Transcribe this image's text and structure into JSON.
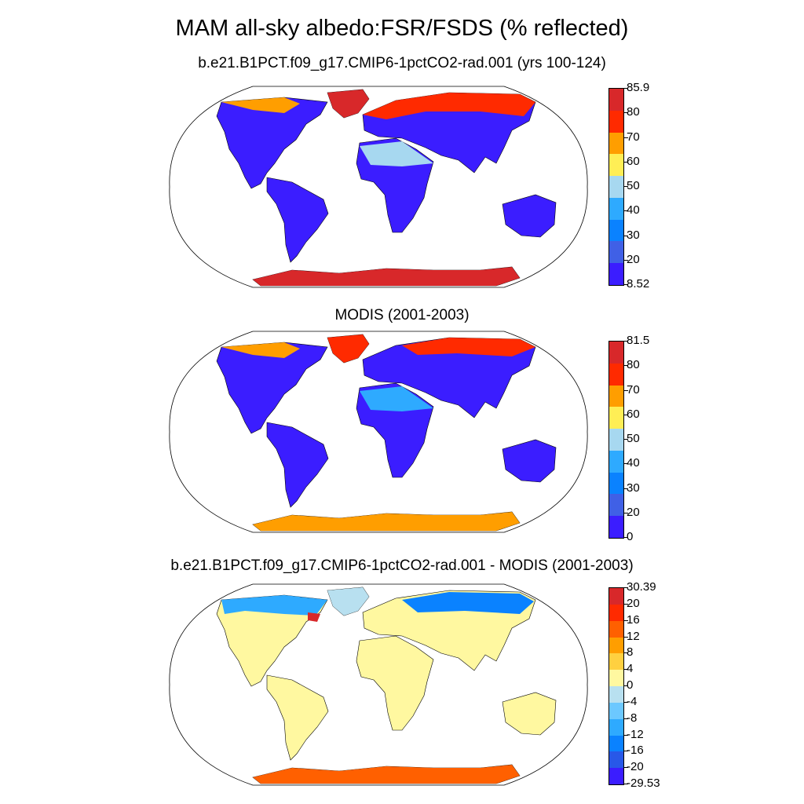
{
  "title": "MAM all-sky albedo:FSR/FSDS (% reflected)",
  "panels": [
    {
      "title": "b.e21.B1PCT.f09_g17.CMIP6-1pctCO2-rad.001 (yrs 100-124)",
      "colorbar": {
        "labels": [
          "85.9",
          "80",
          "70",
          "60",
          "50",
          "40",
          "30",
          "20",
          "8.52"
        ],
        "colors": [
          "#d8282a",
          "#ff2a00",
          "#ff9e00",
          "#ffee55",
          "#a7d8f0",
          "#2eaaff",
          "#0a82ff",
          "#4060e6",
          "#3b1dff"
        ]
      }
    },
    {
      "title": "MODIS (2001-2003)",
      "colorbar": {
        "labels": [
          "81.5",
          "80",
          "70",
          "60",
          "50",
          "40",
          "30",
          "20",
          "0"
        ],
        "colors": [
          "#d8282a",
          "#ff2a00",
          "#ff9e00",
          "#ffee55",
          "#a7d8f0",
          "#2eaaff",
          "#0a82ff",
          "#4060e6",
          "#3b1dff"
        ]
      }
    },
    {
      "title": "b.e21.B1PCT.f09_g17.CMIP6-1pctCO2-rad.001 - MODIS (2001-2003)",
      "colorbar": {
        "labels": [
          "30.39",
          "20",
          "16",
          "12",
          "8",
          "4",
          "0",
          "-4",
          "-8",
          "-12",
          "-16",
          "-20",
          "-29.53"
        ],
        "colors": [
          "#d8282a",
          "#ff2a00",
          "#ff6000",
          "#ff9e00",
          "#ffd040",
          "#fff8a0",
          "#b8e0f0",
          "#6cc8ff",
          "#2eaaff",
          "#0a82ff",
          "#2858e8",
          "#3b1dff"
        ]
      }
    }
  ]
}
